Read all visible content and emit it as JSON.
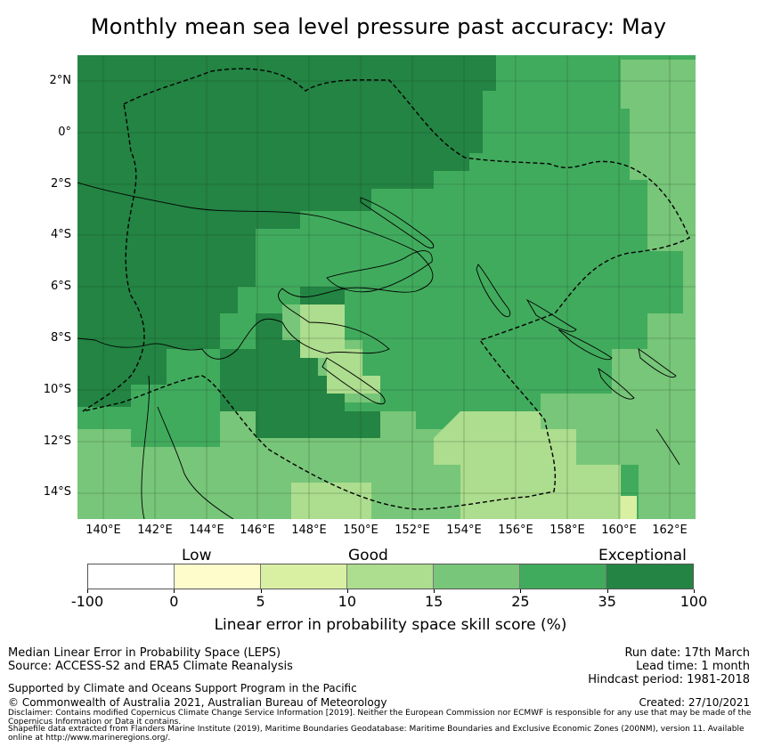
{
  "title": "Monthly mean sea level pressure past accuracy: May",
  "map": {
    "lat_labels": [
      "2°N",
      "0°",
      "2°S",
      "4°S",
      "6°S",
      "8°S",
      "10°S",
      "12°S",
      "14°S"
    ],
    "lon_labels": [
      "140°E",
      "142°E",
      "144°E",
      "146°E",
      "148°E",
      "150°E",
      "152°E",
      "154°E",
      "156°E",
      "158°E",
      "160°E",
      "162°E"
    ],
    "extent": {
      "lon_min": 139.0,
      "lon_max": 163.0,
      "lat_min": -15.0,
      "lat_max": 3.0
    }
  },
  "legend": {
    "categories": [
      "Low",
      "Good",
      "Exceptional"
    ],
    "ticks": [
      "-100",
      "0",
      "5",
      "10",
      "15",
      "25",
      "35",
      "100"
    ],
    "colors": [
      "#ffffff",
      "#fefccb",
      "#d9f0a3",
      "#addd8e",
      "#78c679",
      "#41ab5d",
      "#238443"
    ],
    "label": "Linear error in probability space skill score (%)"
  },
  "footer": {
    "left1": "Median Linear Error in Probability Space (LEPS)",
    "left2": "Source: ACCESS-S2 and ERA5 Climate Reanalysis",
    "support": "Supported by Climate and Oceans Support Program in the Pacific",
    "copyright": "© Commonwealth of Australia 2021, Australian Bureau of Meteorology",
    "run_date": "Run date: 17th March",
    "lead_time": "Lead time: 1 month",
    "hindcast": "Hindcast period: 1981-2018",
    "created": "Created: 27/10/2021",
    "disclaimer": "Disclaimer: Contains modified Copernicus Climate Change Service Information [2019]. Neither the European Commission nor ECMWF is responsible for any use that may be made of the Copernicus Information or Data it contains.",
    "shapefile": "Shapefile data extracted from Flanders Marine Institute (2019), Maritime Boundaries Geodatabase: Maritime Boundaries and Exclusive Economic Zones (200NM), version 11. Available online at http://www.marineregions.org/."
  }
}
